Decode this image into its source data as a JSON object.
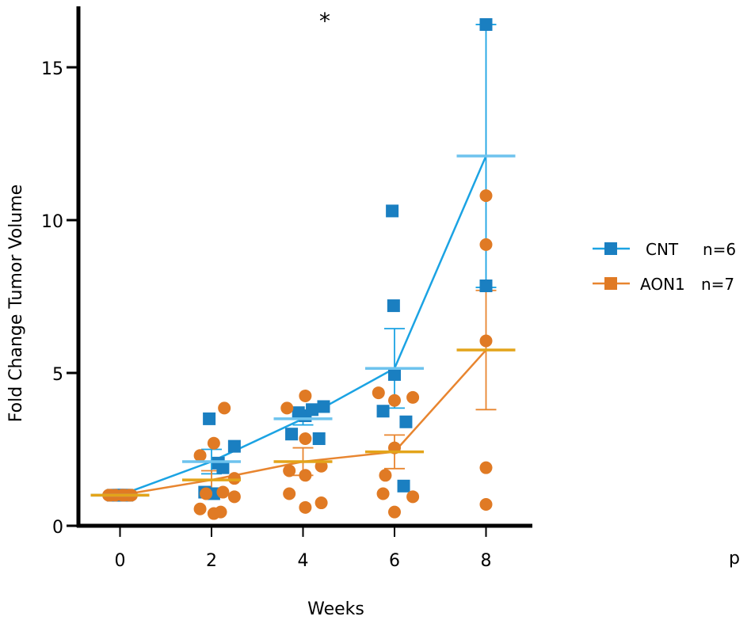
{
  "chart_data": {
    "type": "scatter",
    "title": "",
    "xlabel": "Weeks",
    "ylabel": "Fold Change Tumor Volume",
    "x_ticks": [
      0,
      2,
      4,
      6,
      8
    ],
    "x_tick_labels": [
      "0",
      "2",
      "4",
      "6",
      "8"
    ],
    "y_ticks": [
      0,
      5,
      10,
      15
    ],
    "y_tick_labels": [
      "0",
      "5",
      "10",
      "15"
    ],
    "xlim": [
      -0.95,
      8.95
    ],
    "ylim": [
      0,
      17
    ],
    "grid": false,
    "legend_position": "right",
    "annotations": [
      {
        "text": "*",
        "x": 4.5,
        "y": 16.6
      }
    ],
    "footer_text": "p",
    "series": [
      {
        "name": "CNT",
        "legend_label": "CNT",
        "n_label": "n=6",
        "color": "#1a7fc1",
        "line_color": "#1ba3e3",
        "mean_color": "#6ec3ee",
        "marker": "square",
        "points": [
          [
            -0.15,
            1.0
          ],
          [
            0,
            1.0
          ],
          [
            0.15,
            1.0
          ],
          [
            -0.05,
            1.0
          ],
          [
            0.05,
            1.0
          ],
          [
            0.1,
            1.0
          ],
          [
            1.85,
            1.1
          ],
          [
            1.95,
            3.5
          ],
          [
            2.05,
            1.05
          ],
          [
            2.15,
            2.05
          ],
          [
            2.25,
            1.9
          ],
          [
            2.5,
            2.6
          ],
          [
            3.75,
            3.0
          ],
          [
            3.9,
            3.7
          ],
          [
            4.05,
            3.6
          ],
          [
            4.2,
            3.8
          ],
          [
            4.35,
            2.85
          ],
          [
            4.45,
            3.9
          ],
          [
            5.75,
            3.75
          ],
          [
            5.95,
            10.3
          ],
          [
            5.98,
            7.2
          ],
          [
            6.0,
            4.95
          ],
          [
            6.2,
            1.3
          ],
          [
            6.25,
            3.4
          ],
          [
            8.0,
            16.4
          ],
          [
            8.0,
            7.85
          ]
        ],
        "means": [
          {
            "x": 0,
            "mean": 1.0,
            "err": 0.0
          },
          {
            "x": 2,
            "mean": 2.1,
            "err": 0.4
          },
          {
            "x": 4,
            "mean": 3.5,
            "err": 0.2
          },
          {
            "x": 6,
            "mean": 5.15,
            "err": 1.3
          },
          {
            "x": 8,
            "mean": 12.1,
            "err": 4.3
          }
        ]
      },
      {
        "name": "AON1",
        "legend_label": "AON1",
        "n_label": "n=7",
        "color": "#e07a24",
        "line_color": "#e8852f",
        "mean_color": "#e3a41a",
        "marker": "circle",
        "points": [
          [
            -0.25,
            1.0
          ],
          [
            -0.1,
            1.0
          ],
          [
            0.05,
            1.0
          ],
          [
            0.2,
            1.0
          ],
          [
            0.25,
            1.0
          ],
          [
            -0.2,
            1.0
          ],
          [
            0.1,
            1.0
          ],
          [
            1.75,
            2.3
          ],
          [
            1.75,
            0.55
          ],
          [
            1.88,
            1.05
          ],
          [
            2.05,
            0.4
          ],
          [
            2.05,
            2.7
          ],
          [
            2.2,
            0.45
          ],
          [
            2.25,
            1.1
          ],
          [
            2.28,
            3.85
          ],
          [
            2.5,
            1.55
          ],
          [
            2.5,
            0.95
          ],
          [
            3.65,
            3.85
          ],
          [
            3.7,
            1.05
          ],
          [
            3.7,
            1.8
          ],
          [
            4.05,
            0.6
          ],
          [
            4.05,
            1.65
          ],
          [
            4.05,
            2.85
          ],
          [
            4.05,
            4.25
          ],
          [
            4.4,
            0.75
          ],
          [
            4.4,
            1.95
          ],
          [
            5.65,
            4.35
          ],
          [
            5.75,
            1.05
          ],
          [
            5.8,
            1.65
          ],
          [
            6.0,
            0.45
          ],
          [
            6.0,
            4.1
          ],
          [
            6.0,
            2.55
          ],
          [
            6.4,
            0.95
          ],
          [
            6.4,
            4.2
          ],
          [
            8.0,
            10.8
          ],
          [
            8.0,
            9.2
          ],
          [
            8.0,
            6.05
          ],
          [
            8.0,
            1.9
          ],
          [
            8.0,
            0.7
          ]
        ],
        "means": [
          {
            "x": 0,
            "mean": 1.0,
            "err": 0.0
          },
          {
            "x": 2,
            "mean": 1.5,
            "err": 0.3
          },
          {
            "x": 4,
            "mean": 2.1,
            "err": 0.45
          },
          {
            "x": 6,
            "mean": 2.42,
            "err": 0.55
          },
          {
            "x": 8,
            "mean": 5.75,
            "err": 1.95
          }
        ]
      }
    ]
  }
}
